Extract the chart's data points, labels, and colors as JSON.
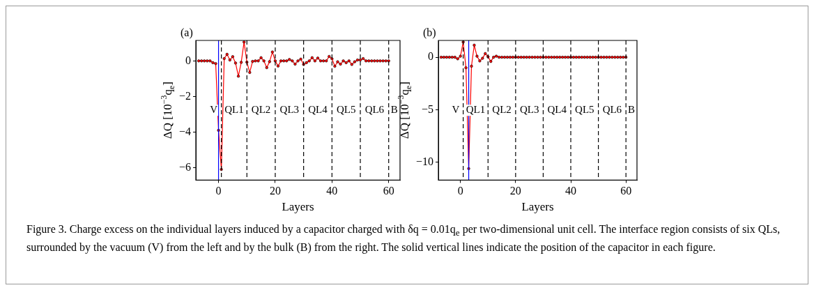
{
  "chart_data": [
    {
      "type": "line",
      "title": "(a)",
      "xlabel": "Layers",
      "ylabel": "ΔQ [10$^{−3}$q$_{e}$]",
      "xlim": [
        -8,
        64
      ],
      "xticks": [
        0,
        20,
        40,
        60
      ],
      "ylim": [
        -6.7,
        1.15
      ],
      "yticks": [
        -6,
        -4,
        -2,
        0
      ],
      "grid": false,
      "legend": false,
      "marker": "circle",
      "line_style": "solid",
      "x": [
        -7,
        -6,
        -5,
        -4,
        -3,
        -2,
        -1,
        0,
        1,
        2,
        3,
        4,
        5,
        6,
        7,
        8,
        9,
        10,
        11,
        12,
        13,
        14,
        15,
        16,
        17,
        18,
        19,
        20,
        21,
        22,
        23,
        24,
        25,
        26,
        27,
        28,
        29,
        30,
        31,
        32,
        33,
        34,
        35,
        36,
        37,
        38,
        39,
        40,
        41,
        42,
        43,
        44,
        45,
        46,
        47,
        48,
        49,
        50,
        51,
        52,
        53,
        54,
        55,
        56,
        57,
        58,
        59,
        60
      ],
      "series": [
        {
          "color": "#ff0000",
          "values": [
            0,
            0,
            0,
            0,
            0,
            -0.1,
            -0.15,
            -3.9,
            -6.1,
            0.13,
            0.37,
            0.05,
            0.24,
            -0.12,
            -0.86,
            -0.08,
            1.06,
            -0.07,
            -0.65,
            -0.03,
            0,
            0,
            0.18,
            0,
            -0.38,
            -0.04,
            0.5,
            0,
            -0.29,
            0,
            0,
            0,
            0.08,
            0,
            -0.18,
            0,
            0.1,
            -0.2,
            -0.1,
            0,
            0.18,
            0,
            0.16,
            0,
            0,
            0,
            0.25,
            0.12,
            -0.3,
            -0.05,
            -0.18,
            0,
            -0.1,
            0,
            -0.2,
            -0.05,
            0.05,
            0.05,
            0.13,
            0,
            0,
            0,
            0,
            0,
            0,
            0,
            0,
            0
          ]
        }
      ],
      "ref_lines": [
        {
          "axis": "x",
          "value": 0,
          "color": "#0000ff",
          "line_style": "solid"
        },
        {
          "axis": "x",
          "value": 1,
          "color": "#000000",
          "line_style": "dashed"
        },
        {
          "axis": "x",
          "value": 10,
          "color": "#000000",
          "line_style": "dashed"
        },
        {
          "axis": "x",
          "value": 20,
          "color": "#000000",
          "line_style": "dashed"
        },
        {
          "axis": "x",
          "value": 30,
          "color": "#000000",
          "line_style": "dashed"
        },
        {
          "axis": "x",
          "value": 40,
          "color": "#000000",
          "line_style": "dashed"
        },
        {
          "axis": "x",
          "value": 50,
          "color": "#000000",
          "line_style": "dashed"
        },
        {
          "axis": "x",
          "value": 60,
          "color": "#000000",
          "line_style": "dashed"
        }
      ],
      "annotations": [
        "V",
        "QL1",
        "QL2",
        "QL3",
        "QL4",
        "QL5",
        "QL6",
        "B"
      ]
    },
    {
      "type": "line",
      "title": "(b)",
      "xlabel": "Layers",
      "ylabel": "ΔQ [10$^{−3}$q$_{e}$]",
      "xlim": [
        -8,
        64
      ],
      "xticks": [
        0,
        20,
        40,
        60
      ],
      "ylim": [
        -11.7,
        1.6
      ],
      "yticks": [
        -10,
        -5,
        0
      ],
      "grid": false,
      "legend": false,
      "marker": "circle",
      "line_style": "solid",
      "x": [
        -7,
        -6,
        -5,
        -4,
        -3,
        -2,
        -1,
        0,
        1,
        2,
        3,
        4,
        5,
        6,
        7,
        8,
        9,
        10,
        11,
        12,
        13,
        14,
        15,
        16,
        17,
        18,
        19,
        20,
        21,
        22,
        23,
        24,
        25,
        26,
        27,
        28,
        29,
        30,
        31,
        32,
        33,
        34,
        35,
        36,
        37,
        38,
        39,
        40,
        41,
        42,
        43,
        44,
        45,
        46,
        47,
        48,
        49,
        50,
        51,
        52,
        53,
        54,
        55,
        56,
        57,
        58,
        59,
        60
      ],
      "series": [
        {
          "color": "#ff0000",
          "values": [
            0,
            0,
            0,
            0,
            0,
            0,
            -0.15,
            0.1,
            1.45,
            -1.0,
            -10.6,
            -0.85,
            1.15,
            0.1,
            -0.35,
            -0.1,
            0.35,
            0.05,
            -0.4,
            0,
            0.1,
            0,
            0,
            0,
            0,
            0,
            0,
            0,
            0,
            0,
            0,
            0,
            0,
            0,
            0,
            0,
            0,
            0,
            0,
            0,
            0,
            0,
            0,
            0,
            0,
            0,
            0,
            0,
            0,
            0,
            0,
            0,
            0,
            0,
            0,
            0,
            0,
            0,
            0,
            0,
            0,
            0,
            0,
            0,
            0,
            0,
            0,
            0
          ]
        }
      ],
      "ref_lines": [
        {
          "axis": "x",
          "value": 3,
          "color": "#0000ff",
          "line_style": "solid"
        },
        {
          "axis": "x",
          "value": 1,
          "color": "#000000",
          "line_style": "dashed"
        },
        {
          "axis": "x",
          "value": 10,
          "color": "#000000",
          "line_style": "dashed"
        },
        {
          "axis": "x",
          "value": 20,
          "color": "#000000",
          "line_style": "dashed"
        },
        {
          "axis": "x",
          "value": 30,
          "color": "#000000",
          "line_style": "dashed"
        },
        {
          "axis": "x",
          "value": 40,
          "color": "#000000",
          "line_style": "dashed"
        },
        {
          "axis": "x",
          "value": 50,
          "color": "#000000",
          "line_style": "dashed"
        },
        {
          "axis": "x",
          "value": 60,
          "color": "#000000",
          "line_style": "dashed"
        }
      ],
      "annotations": [
        "V",
        "QL1",
        "QL2",
        "QL3",
        "QL4",
        "QL5",
        "QL6",
        "B",
        "Figure 3. Charge excess on the individual layers induced by a capacitor charged with δq = 0.01q$_{e}$ per two-dimensional unit cell. The interface region consists of six QLs, surrounded by the vacuum (V) from the left and by the bulk (B) from the right. The solid vertical lines indicate the position of the capacitor in each figure."
      ]
    }
  ]
}
